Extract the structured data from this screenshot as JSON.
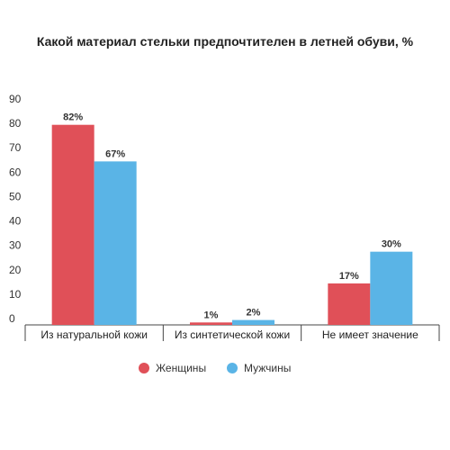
{
  "chart_data": {
    "type": "bar",
    "title": "Какой материал стельки предпочтителен в летней обуви, %",
    "categories": [
      "Из натуральной кожи",
      "Из синтетической кожи",
      "Не имеет значение"
    ],
    "series": [
      {
        "name": "Женщины",
        "values": [
          82,
          1,
          17
        ],
        "labels": [
          "82%",
          "1%",
          "17%"
        ],
        "color": "#e05058"
      },
      {
        "name": "Мужчины",
        "values": [
          67,
          2,
          30
        ],
        "labels": [
          "67%",
          "2%",
          "30%"
        ],
        "color": "#5ab4e6"
      }
    ],
    "ylim": [
      0,
      90
    ],
    "yticks": [
      "0",
      "10",
      "20",
      "30",
      "40",
      "50",
      "60",
      "70",
      "80",
      "90"
    ],
    "xlabel": "",
    "ylabel": "",
    "grid": false,
    "legend_position": "bottom"
  }
}
